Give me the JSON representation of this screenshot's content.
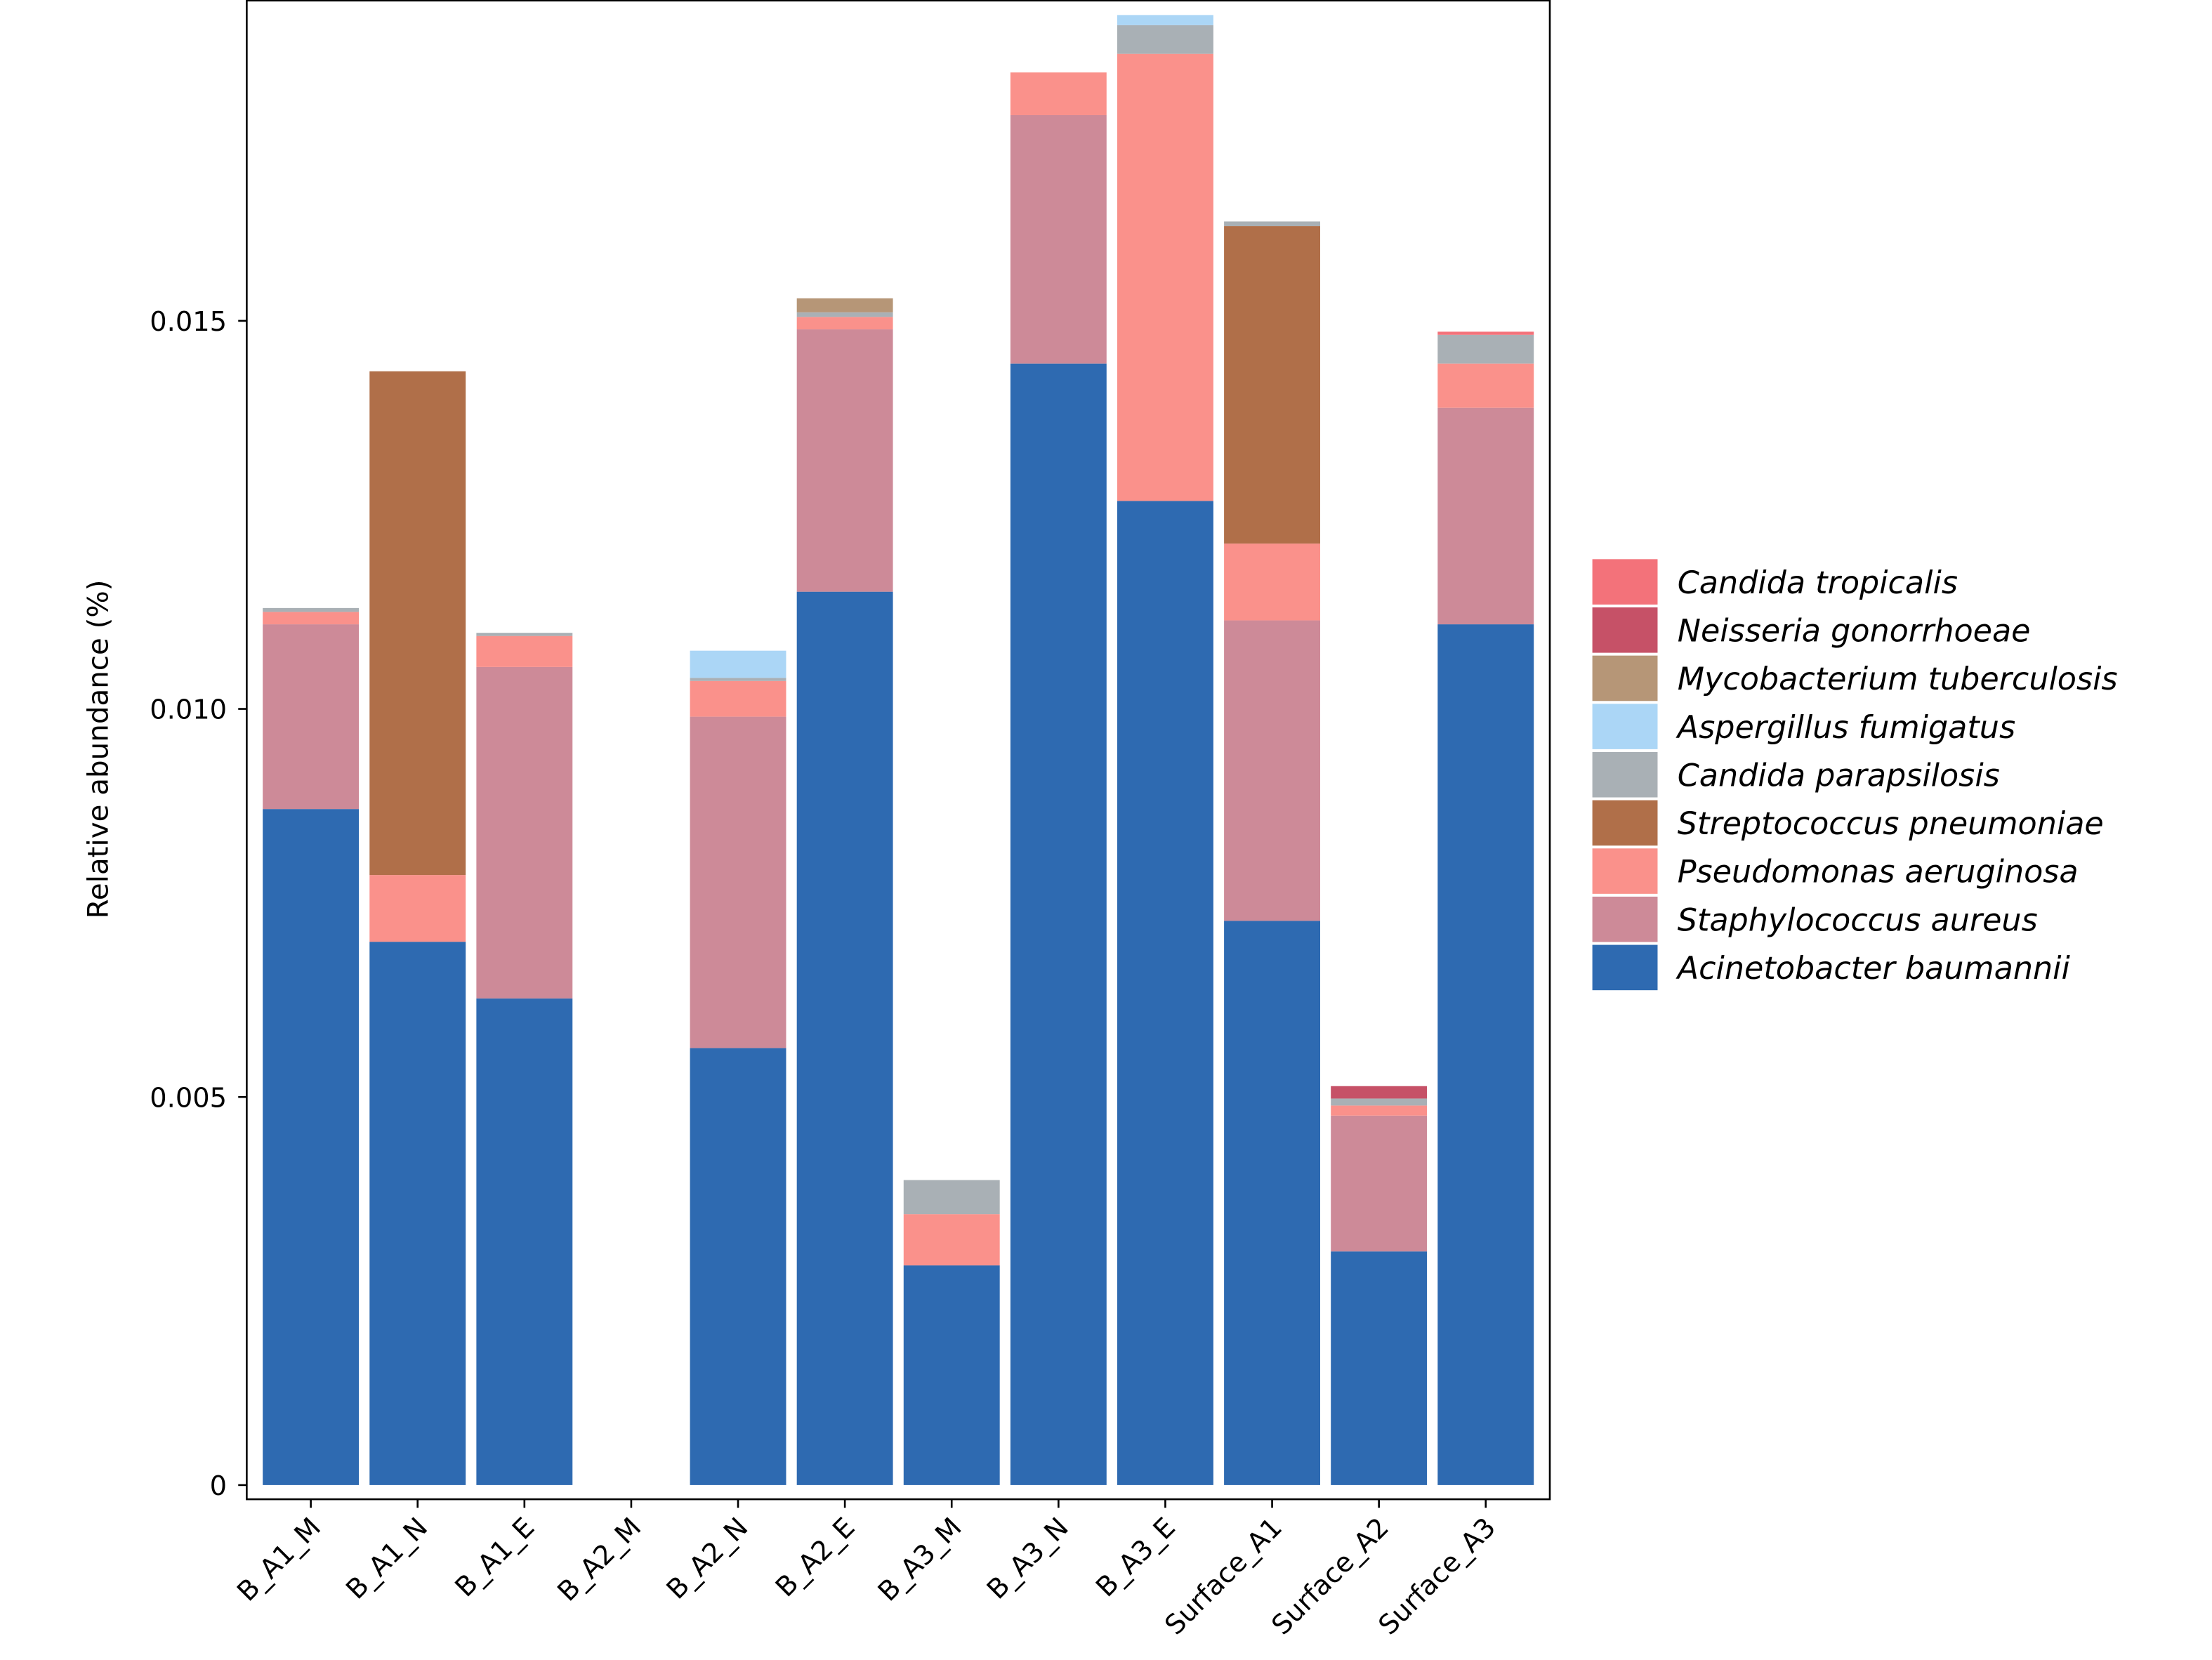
{
  "chart_data": {
    "type": "bar",
    "stacked": true,
    "title": "",
    "xlabel": "",
    "ylabel": "Relative abundance (%)",
    "ylim": [
      0,
      0.0191
    ],
    "yticks": [
      0,
      0.005,
      0.01,
      0.015
    ],
    "ytick_labels": [
      "0",
      "0.005",
      "0.010",
      "0.015"
    ],
    "legend_position": "right",
    "categories": [
      "B_A1_M",
      "B_A1_N",
      "B_A1_E",
      "B_A2_M",
      "B_A2_N",
      "B_A2_E",
      "B_A3_M",
      "B_A3_N",
      "B_A3_E",
      "Surface_A1",
      "Surface_A2",
      "Surface_A3"
    ],
    "series": [
      {
        "name": "Acinetobacter baumannii",
        "color": "#2E6AB1",
        "values": [
          0.00871,
          0.007,
          0.00627,
          0,
          0.00563,
          0.01151,
          0.00283,
          0.01445,
          0.01268,
          0.00727,
          0.00301,
          0.01109
        ]
      },
      {
        "name": "Staphylococcus aureus",
        "color": "#CD8A98",
        "values": [
          0.00238,
          0,
          0.00427,
          0,
          0.00427,
          0.00338,
          0,
          0.0032,
          0,
          0.00387,
          0.00175,
          0.00279
        ]
      },
      {
        "name": "Pseudomonas aeruginosa",
        "color": "#FA918B",
        "values": [
          0.00016,
          0.00086,
          0.0004,
          0,
          0.00046,
          0.00016,
          0.00066,
          0.00055,
          0.00576,
          0.00099,
          0.00013,
          0.00057
        ]
      },
      {
        "name": "Streptococcus pneumoniae",
        "color": "#B06F49",
        "values": [
          0,
          0.00649,
          0,
          0,
          0,
          0,
          0,
          0,
          0,
          0.00409,
          0,
          0
        ]
      },
      {
        "name": "Candida parapsilosis",
        "color": "#A9B0B5",
        "values": [
          5e-05,
          0,
          4e-05,
          0,
          4e-05,
          6e-05,
          0.00044,
          0,
          0.00037,
          6e-05,
          9e-05,
          0.00037
        ]
      },
      {
        "name": "Aspergillus fumigatus",
        "color": "#ABD6F6",
        "values": [
          0,
          0,
          0,
          0,
          0.00035,
          0,
          0,
          0,
          0.00013,
          0,
          0,
          0
        ]
      },
      {
        "name": "Mycobacterium tuberculosis",
        "color": "#B69677",
        "values": [
          0,
          0,
          0,
          0,
          0,
          0.00018,
          0,
          0,
          0,
          0,
          0,
          0
        ]
      },
      {
        "name": "Neisseria gonorrhoeae",
        "color": "#C65167",
        "values": [
          0,
          0,
          0,
          0,
          0,
          0,
          0,
          0,
          0,
          0,
          0.00016,
          0
        ]
      },
      {
        "name": "Candida tropicalis",
        "color": "#F3727A",
        "values": [
          0,
          0,
          0,
          0,
          0,
          0,
          0,
          0,
          0,
          0,
          0,
          4e-05
        ]
      }
    ]
  }
}
